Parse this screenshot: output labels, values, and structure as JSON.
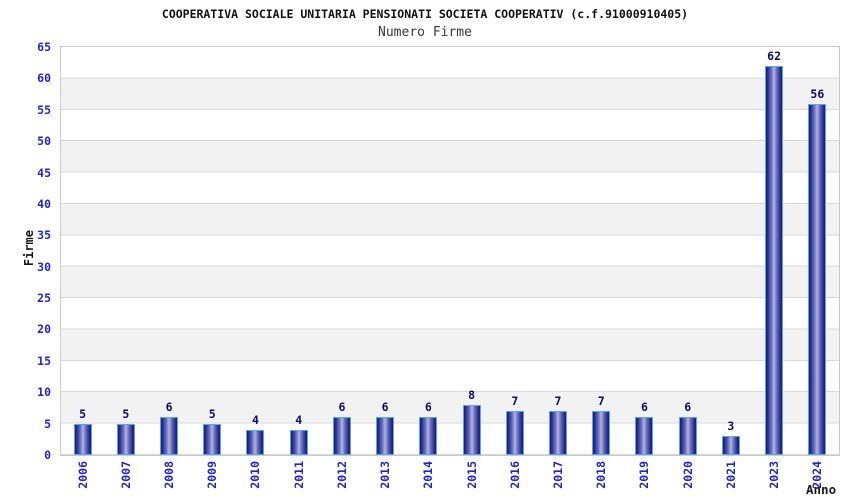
{
  "chart_data": {
    "type": "bar",
    "title": "COOPERATIVA SOCIALE UNITARIA PENSIONATI SOCIETA COOPERATIV (c.f.91000910405)",
    "subtitle": "Numero Firme",
    "xlabel": "Anno",
    "ylabel": "Firme",
    "categories": [
      "2006",
      "2007",
      "2008",
      "2009",
      "2010",
      "2011",
      "2012",
      "2013",
      "2014",
      "2015",
      "2016",
      "2017",
      "2018",
      "2019",
      "2020",
      "2021",
      "2023",
      "2024"
    ],
    "values": [
      5,
      5,
      6,
      5,
      4,
      4,
      6,
      6,
      6,
      8,
      7,
      7,
      7,
      6,
      6,
      3,
      62,
      56
    ],
    "ylim": [
      0,
      65
    ],
    "ytick_step": 5,
    "yticks": [
      0,
      5,
      10,
      15,
      20,
      25,
      30,
      35,
      40,
      45,
      50,
      55,
      60,
      65
    ],
    "grid": true,
    "legend_position": "none",
    "band_fill": "alternating-horizontal",
    "colors": {
      "title": "#111111",
      "subtitle": "#3a3a3a",
      "tick_label": "#2323cc",
      "value_label": "#0c0c66",
      "axis_title": "#1a1a1a",
      "bar_border": "#55a7ee",
      "bar_edge": "#1f1f7d",
      "bar_mid": "#5d63b5",
      "bar_center": "#b0b4e2",
      "band_gray": "#f2f2f2",
      "grid_line": "#d9d9d9",
      "plot_border": "#c9c9c9",
      "background": "#ffffff"
    }
  }
}
